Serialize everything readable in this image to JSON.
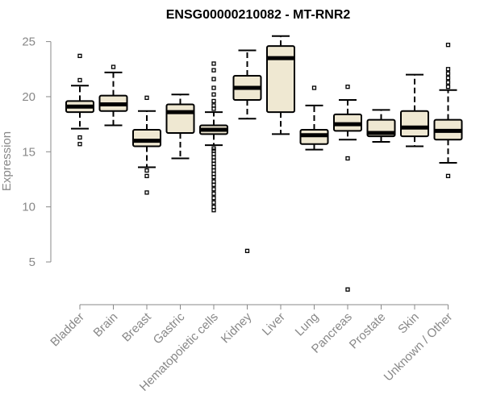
{
  "chart_data": {
    "type": "boxplot",
    "title": "ENSG00000210082 - MT-RNR2",
    "xlabel": "",
    "ylabel": "Expression",
    "ylim": [
      2,
      26
    ],
    "yticks": [
      5,
      10,
      15,
      20,
      25
    ],
    "box_fill": "#efe8d2",
    "categories": [
      "Bladder",
      "Brain",
      "Breast",
      "Gastric",
      "Hematopoietic cells",
      "Kidney",
      "Liver",
      "Lung",
      "Pancreas",
      "Prostate",
      "Skin",
      "Unknown / Other"
    ],
    "boxes": [
      {
        "q1": 18.6,
        "median": 19.1,
        "q3": 19.6,
        "wlow": 17.1,
        "whigh": 21.0,
        "outliers": [
          15.7,
          16.3,
          21.5,
          23.7
        ]
      },
      {
        "q1": 18.7,
        "median": 19.3,
        "q3": 20.1,
        "wlow": 17.4,
        "whigh": 22.2,
        "outliers": [
          22.7
        ]
      },
      {
        "q1": 15.5,
        "median": 16.0,
        "q3": 17.0,
        "wlow": 13.6,
        "whigh": 18.7,
        "outliers": [
          11.3,
          12.8,
          13.3,
          19.9
        ]
      },
      {
        "q1": 16.7,
        "median": 18.6,
        "q3": 19.3,
        "wlow": 14.4,
        "whigh": 20.2,
        "outliers": []
      },
      {
        "q1": 16.6,
        "median": 17.0,
        "q3": 17.4,
        "wlow": 15.6,
        "whigh": 18.6,
        "outliers": [
          9.7,
          10.0,
          10.4,
          10.8,
          11.2,
          11.6,
          12.0,
          12.3,
          12.7,
          13.0,
          13.3,
          13.6,
          13.9,
          14.2,
          14.5,
          14.8,
          15.1,
          15.3,
          18.9,
          19.2,
          19.6,
          20.2,
          20.8,
          21.6,
          22.4,
          23.0
        ]
      },
      {
        "q1": 19.7,
        "median": 20.8,
        "q3": 21.9,
        "wlow": 18.0,
        "whigh": 24.2,
        "outliers": [
          6.0
        ]
      },
      {
        "q1": 18.6,
        "median": 23.5,
        "q3": 24.6,
        "wlow": 16.6,
        "whigh": 25.5,
        "outliers": []
      },
      {
        "q1": 15.7,
        "median": 16.5,
        "q3": 17.0,
        "wlow": 15.2,
        "whigh": 19.2,
        "outliers": [
          20.8
        ]
      },
      {
        "q1": 16.9,
        "median": 17.5,
        "q3": 18.4,
        "wlow": 16.1,
        "whigh": 19.7,
        "outliers": [
          2.5,
          14.4,
          20.9
        ]
      },
      {
        "q1": 16.4,
        "median": 16.7,
        "q3": 17.9,
        "wlow": 15.9,
        "whigh": 18.8,
        "outliers": []
      },
      {
        "q1": 16.4,
        "median": 17.2,
        "q3": 18.7,
        "wlow": 15.5,
        "whigh": 22.0,
        "outliers": []
      },
      {
        "q1": 16.1,
        "median": 16.9,
        "q3": 17.9,
        "wlow": 14.0,
        "whigh": 20.6,
        "outliers": [
          12.8,
          20.9,
          21.3,
          21.7,
          22.1,
          22.5,
          24.7
        ]
      }
    ]
  }
}
